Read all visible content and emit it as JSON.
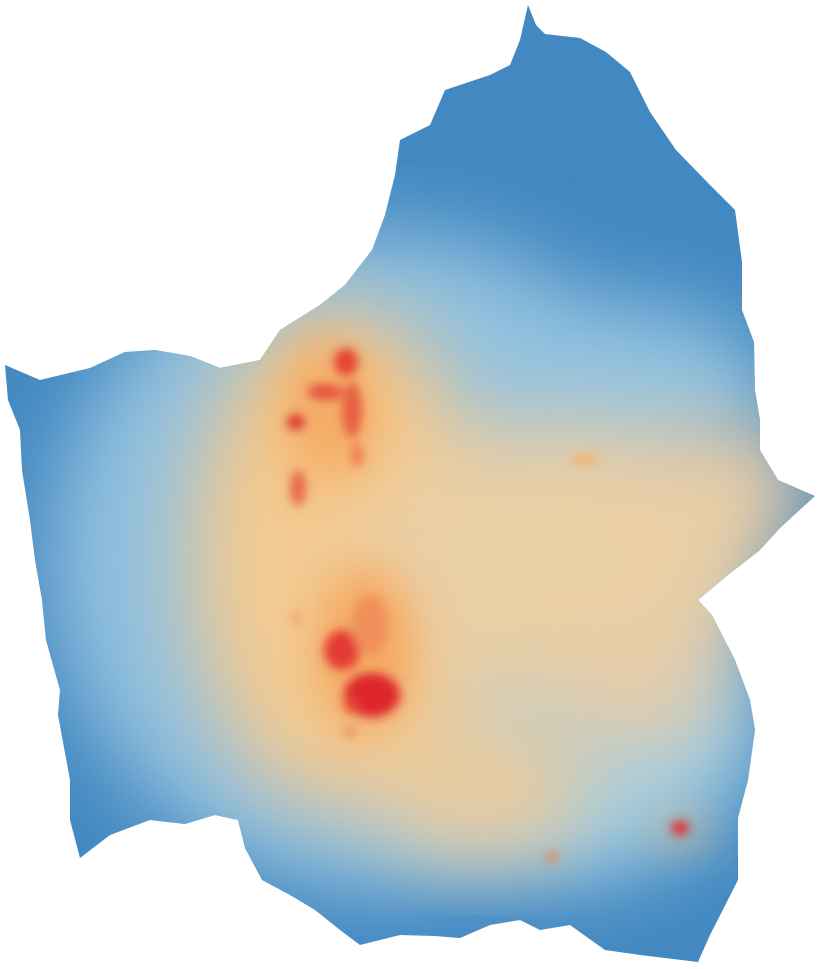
{
  "map": {
    "type": "choropleth-heatmap",
    "palette": {
      "low": "#2f7ab8",
      "low_mid": "#9ccbe2",
      "mid": "#f2c88c",
      "high_mid": "#f39a52",
      "high": "#de1e1e"
    }
  }
}
